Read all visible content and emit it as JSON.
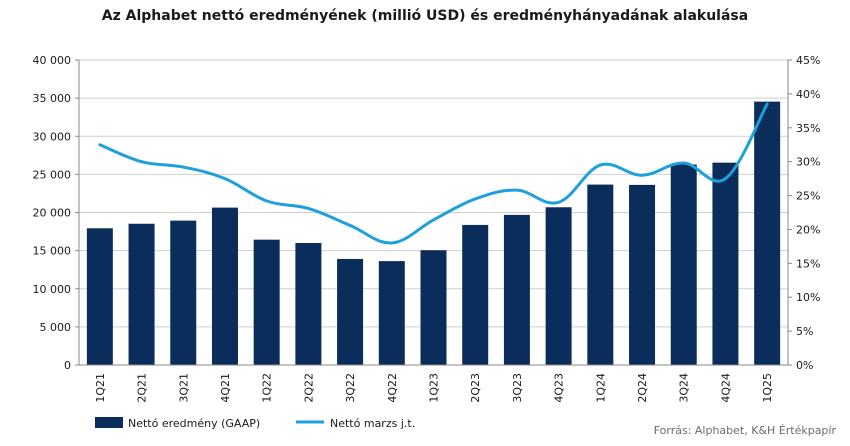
{
  "chart_data": {
    "type": "bar",
    "title": "Az Alphabet nettó eredményének (millió USD) és eredményhányadának alakulása",
    "categories": [
      "1Q21",
      "2Q21",
      "3Q21",
      "4Q21",
      "1Q22",
      "2Q22",
      "3Q22",
      "4Q22",
      "1Q23",
      "2Q23",
      "3Q23",
      "4Q23",
      "1Q24",
      "2Q24",
      "3Q24",
      "4Q24",
      "1Q25"
    ],
    "series": [
      {
        "name": "Nettó eredmény (GAAP)",
        "type": "bar",
        "axis": "left",
        "color": "#0b2d5b",
        "values": [
          17930,
          18525,
          18936,
          20642,
          16436,
          16002,
          13910,
          13624,
          15051,
          18368,
          19689,
          20687,
          23662,
          23619,
          26301,
          26536,
          34540
        ]
      },
      {
        "name": "Nettó marzs j.t.",
        "type": "line",
        "axis": "right",
        "color": "#1ea0dc",
        "values": [
          32.5,
          30.0,
          29.2,
          27.5,
          24.2,
          23.1,
          20.6,
          18.0,
          21.4,
          24.5,
          25.8,
          24.0,
          29.5,
          28.0,
          29.8,
          27.5,
          38.5
        ]
      }
    ],
    "y_left": {
      "min": 0,
      "max": 40000,
      "step": 5000,
      "tick_labels": [
        "0",
        "5 000",
        "10 000",
        "15 000",
        "20 000",
        "25 000",
        "30 000",
        "35 000",
        "40 000"
      ]
    },
    "y_right": {
      "min": 0,
      "max": 45,
      "step": 5,
      "tick_labels": [
        "0%",
        "5%",
        "10%",
        "15%",
        "20%",
        "25%",
        "30%",
        "35%",
        "40%",
        "45%"
      ]
    },
    "grid": "horizontal",
    "legend": "bottom-left",
    "source": "Forrás: Alphabet, K&H Értékpapír"
  }
}
